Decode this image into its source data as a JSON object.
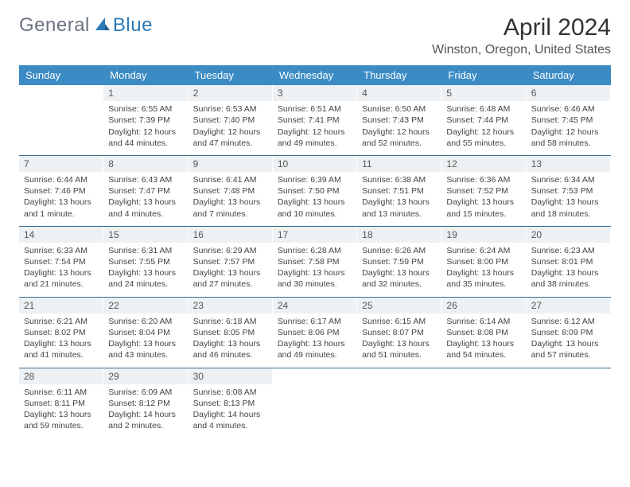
{
  "logo": {
    "part1": "General",
    "part2": "Blue"
  },
  "title": "April 2024",
  "location": "Winston, Oregon, United States",
  "colors": {
    "header_bg": "#3b8bc4",
    "header_text": "#ffffff",
    "daynum_bg": "#eef1f3",
    "week_border": "#3b6b8c",
    "logo_gray": "#6b7280",
    "logo_blue": "#2a7ab8",
    "page_bg": "#ffffff",
    "text": "#444444"
  },
  "day_names": [
    "Sunday",
    "Monday",
    "Tuesday",
    "Wednesday",
    "Thursday",
    "Friday",
    "Saturday"
  ],
  "weeks": [
    [
      null,
      {
        "n": "1",
        "sr": "6:55 AM",
        "ss": "7:39 PM",
        "dl": "12 hours and 44 minutes."
      },
      {
        "n": "2",
        "sr": "6:53 AM",
        "ss": "7:40 PM",
        "dl": "12 hours and 47 minutes."
      },
      {
        "n": "3",
        "sr": "6:51 AM",
        "ss": "7:41 PM",
        "dl": "12 hours and 49 minutes."
      },
      {
        "n": "4",
        "sr": "6:50 AM",
        "ss": "7:43 PM",
        "dl": "12 hours and 52 minutes."
      },
      {
        "n": "5",
        "sr": "6:48 AM",
        "ss": "7:44 PM",
        "dl": "12 hours and 55 minutes."
      },
      {
        "n": "6",
        "sr": "6:46 AM",
        "ss": "7:45 PM",
        "dl": "12 hours and 58 minutes."
      }
    ],
    [
      {
        "n": "7",
        "sr": "6:44 AM",
        "ss": "7:46 PM",
        "dl": "13 hours and 1 minute."
      },
      {
        "n": "8",
        "sr": "6:43 AM",
        "ss": "7:47 PM",
        "dl": "13 hours and 4 minutes."
      },
      {
        "n": "9",
        "sr": "6:41 AM",
        "ss": "7:48 PM",
        "dl": "13 hours and 7 minutes."
      },
      {
        "n": "10",
        "sr": "6:39 AM",
        "ss": "7:50 PM",
        "dl": "13 hours and 10 minutes."
      },
      {
        "n": "11",
        "sr": "6:38 AM",
        "ss": "7:51 PM",
        "dl": "13 hours and 13 minutes."
      },
      {
        "n": "12",
        "sr": "6:36 AM",
        "ss": "7:52 PM",
        "dl": "13 hours and 15 minutes."
      },
      {
        "n": "13",
        "sr": "6:34 AM",
        "ss": "7:53 PM",
        "dl": "13 hours and 18 minutes."
      }
    ],
    [
      {
        "n": "14",
        "sr": "6:33 AM",
        "ss": "7:54 PM",
        "dl": "13 hours and 21 minutes."
      },
      {
        "n": "15",
        "sr": "6:31 AM",
        "ss": "7:55 PM",
        "dl": "13 hours and 24 minutes."
      },
      {
        "n": "16",
        "sr": "6:29 AM",
        "ss": "7:57 PM",
        "dl": "13 hours and 27 minutes."
      },
      {
        "n": "17",
        "sr": "6:28 AM",
        "ss": "7:58 PM",
        "dl": "13 hours and 30 minutes."
      },
      {
        "n": "18",
        "sr": "6:26 AM",
        "ss": "7:59 PM",
        "dl": "13 hours and 32 minutes."
      },
      {
        "n": "19",
        "sr": "6:24 AM",
        "ss": "8:00 PM",
        "dl": "13 hours and 35 minutes."
      },
      {
        "n": "20",
        "sr": "6:23 AM",
        "ss": "8:01 PM",
        "dl": "13 hours and 38 minutes."
      }
    ],
    [
      {
        "n": "21",
        "sr": "6:21 AM",
        "ss": "8:02 PM",
        "dl": "13 hours and 41 minutes."
      },
      {
        "n": "22",
        "sr": "6:20 AM",
        "ss": "8:04 PM",
        "dl": "13 hours and 43 minutes."
      },
      {
        "n": "23",
        "sr": "6:18 AM",
        "ss": "8:05 PM",
        "dl": "13 hours and 46 minutes."
      },
      {
        "n": "24",
        "sr": "6:17 AM",
        "ss": "8:06 PM",
        "dl": "13 hours and 49 minutes."
      },
      {
        "n": "25",
        "sr": "6:15 AM",
        "ss": "8:07 PM",
        "dl": "13 hours and 51 minutes."
      },
      {
        "n": "26",
        "sr": "6:14 AM",
        "ss": "8:08 PM",
        "dl": "13 hours and 54 minutes."
      },
      {
        "n": "27",
        "sr": "6:12 AM",
        "ss": "8:09 PM",
        "dl": "13 hours and 57 minutes."
      }
    ],
    [
      {
        "n": "28",
        "sr": "6:11 AM",
        "ss": "8:11 PM",
        "dl": "13 hours and 59 minutes."
      },
      {
        "n": "29",
        "sr": "6:09 AM",
        "ss": "8:12 PM",
        "dl": "14 hours and 2 minutes."
      },
      {
        "n": "30",
        "sr": "6:08 AM",
        "ss": "8:13 PM",
        "dl": "14 hours and 4 minutes."
      },
      null,
      null,
      null,
      null
    ]
  ],
  "labels": {
    "sunrise": "Sunrise: ",
    "sunset": "Sunset: ",
    "daylight": "Daylight: "
  }
}
